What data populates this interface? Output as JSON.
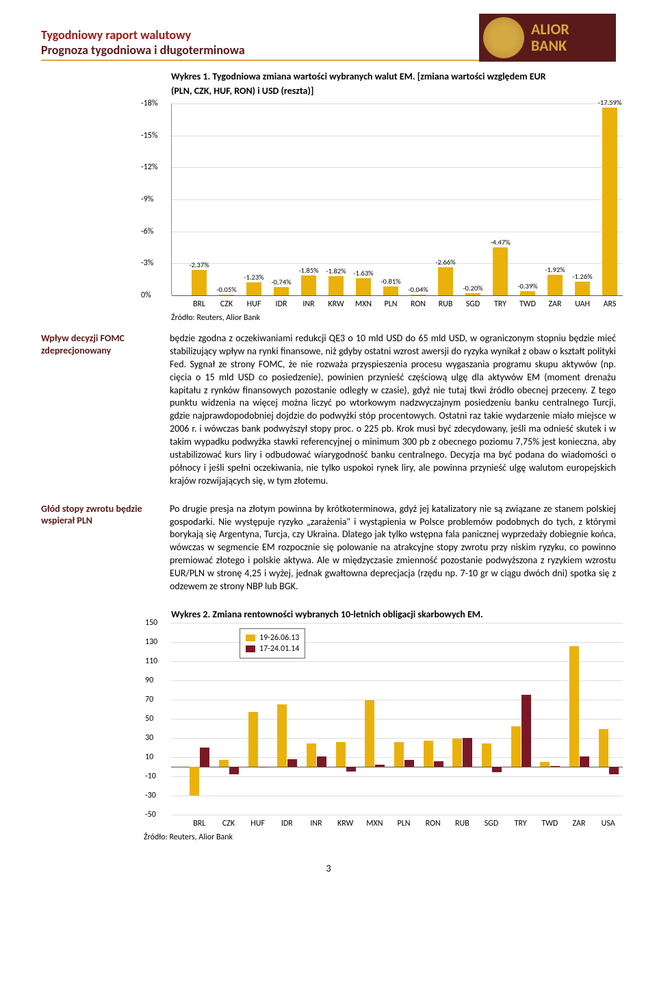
{
  "header": {
    "title_main": "Tygodniowy raport walutowy",
    "title_sub": "Prognoza tygodniowa i długoterminowa",
    "logo_text": "ALIOR\nBANK"
  },
  "chart1": {
    "caption": "Wykres 1. Tygodniowa zmiana wartości wybranych walut EM. [zmiana wartości względem EUR",
    "subcaption": "(PLN, CZK, HUF, RON) i USD (reszta)]",
    "type": "bar",
    "categories": [
      "BRL",
      "CZK",
      "HUF",
      "IDR",
      "INR",
      "KRW",
      "MXN",
      "PLN",
      "RON",
      "RUB",
      "SGD",
      "TRY",
      "TWD",
      "ZAR",
      "UAH",
      "ARS"
    ],
    "values": [
      -2.37,
      -0.05,
      -1.23,
      -0.74,
      -1.85,
      -1.82,
      -1.63,
      -0.81,
      -0.04,
      -2.66,
      -0.2,
      -4.47,
      -0.39,
      -1.92,
      -1.26,
      -17.59
    ],
    "value_labels": [
      "-2.37%",
      "-0.05%",
      "-1.23%",
      "-0.74%",
      "-1.85%",
      "-1.82%",
      "-1.63%",
      "-0.81%",
      "-0.04%",
      "-2.66%",
      "-0.20%",
      "-4.47%",
      "-0.39%",
      "-1.92%",
      "-1.26%",
      "-17.59%"
    ],
    "ylim_top": -18,
    "ylim_bottom": 0,
    "ytick_step": 3,
    "yticks": [
      "-18%",
      "-15%",
      "-12%",
      "-9%",
      "-6%",
      "-3%",
      "0%"
    ],
    "bar_color": "#eab10b",
    "grid_color": "#dddddd",
    "axis_color": "#888888",
    "background_color": "#ffffff",
    "label_fontsize": 10.5,
    "cat_fontsize": 12
  },
  "source_text": "Źródło: Reuters, Alior Bank",
  "sections": [
    {
      "side_label": "Wpływ decyzji FOMC zdeprecjonowany",
      "body": "będzie zgodna z oczekiwaniami redukcji QE3 o 10 mld USD do 65 mld USD, w ograniczonym stopniu będzie mieć stabilizujący wpływ na rynki finansowe, niż gdyby ostatni wzrost awersji do ryzyka wynikał z obaw o kształt polityki Fed. Sygnał ze strony FOMC, że nie rozważa przyspieszenia procesu wygaszania programu skupu aktywów (np. cięcia o 15 mld USD co posiedzenie), powinien przynieść częściową ulgę dla aktywów EM (moment drenażu kapitału z rynków finansowych pozostanie odległy w czasie), gdyż nie tutaj tkwi źródło obecnej przeceny. Z tego punktu widzenia na więcej można liczyć po wtorkowym nadzwyczajnym posiedzeniu banku centralnego Turcji, gdzie najprawdopodobniej dojdzie do podwyżki stóp procentowych. Ostatni raz takie wydarzenie miało miejsce w 2006 r. i wówczas bank podwyższył stopy proc. o 225 pb. Krok musi być zdecydowany, jeśli ma odnieść skutek i w takim wypadku podwyżka stawki referencyjnej o minimum 300 pb z obecnego poziomu 7,75% jest konieczna, aby ustabilizować kurs liry i odbudować wiarygodność banku centralnego. Decyzja ma być podana do wiadomości o północy i jeśli spełni oczekiwania, nie tylko uspokoi rynek liry, ale powinna przynieść ulgę walutom europejskich krajów rozwijających się, w tym złotemu."
    },
    {
      "side_label": "Głód stopy zwrotu będzie wspierał PLN",
      "body": "Po drugie presja na złotym powinna by krótkoterminowa, gdyż jej katalizatory nie są związane ze stanem polskiej gospodarki. Nie występuje ryzyko „zarażenia\" i wystąpienia w Polsce problemów podobnych do tych, z którymi borykają się Argentyna, Turcja, czy Ukraina. Dlatego jak tylko wstępna fala panicznej wyprzedaży dobiegnie końca, wówczas w segmencie EM rozpocznie się polowanie na atrakcyjne stopy zwrotu przy niskim ryzyku, co powinno premiować złotego i polskie aktywa. Ale w międzyczasie zmienność pozostanie podwyższona z ryzykiem wzrostu EUR/PLN w stronę 4,25 i wyżej, jednak gwałtowna deprecjacja (rzędu np. 7-10 gr w ciągu dwóch dni) spotka się z odzewem ze strony NBP lub BGK."
    }
  ],
  "chart2": {
    "caption": "Wykres 2. Zmiana rentowności wybranych 10-letnich obligacji skarbowych EM.",
    "type": "grouped-bar",
    "categories": [
      "BRL",
      "CZK",
      "HUF",
      "IDR",
      "INR",
      "KRW",
      "MXN",
      "PLN",
      "RON",
      "RUB",
      "SGD",
      "TRY",
      "TWD",
      "ZAR",
      "USA"
    ],
    "series": [
      {
        "name": "19-26.06.13",
        "color": "#eab10b",
        "values": [
          -30,
          7,
          57,
          65,
          24,
          26,
          69,
          26,
          27,
          29,
          24,
          42,
          5,
          126,
          39
        ]
      },
      {
        "name": "17-24.01.14",
        "color": "#7a1826",
        "values": [
          20,
          -8,
          -1,
          8,
          11,
          -5,
          2,
          7,
          6,
          30,
          -6,
          75,
          1,
          11,
          -8
        ]
      }
    ],
    "ylim": [
      -50,
      150
    ],
    "ytick_step": 20,
    "yticks": [
      150,
      130,
      110,
      90,
      70,
      50,
      30,
      10,
      -10,
      -30,
      -50
    ],
    "grid_color": "#dddddd",
    "zero_color": "#555555",
    "background_color": "#ffffff"
  },
  "source2_text": "Źródło: Reuters, Alior Bank",
  "page_number": "3"
}
